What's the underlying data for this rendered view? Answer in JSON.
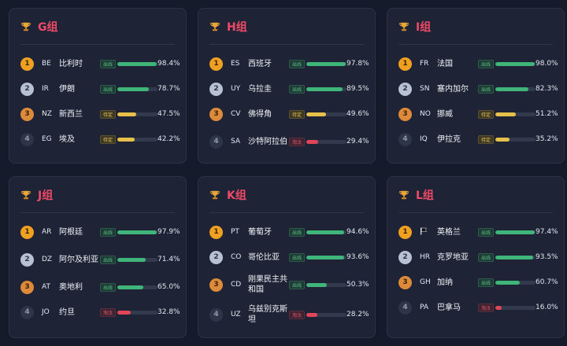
{
  "colors": {
    "qualified": "#3fb57a",
    "pending": "#e7c04a",
    "eliminated": "#e04658"
  },
  "status_labels": {
    "qualified": "出线",
    "pending": "待定",
    "eliminated": "淘汰"
  },
  "groups": [
    {
      "title": "G组",
      "teams": [
        {
          "rank": "1",
          "code": "BE",
          "name": "比利时",
          "status": "qualified",
          "status_label": "出线",
          "value": 98.4,
          "percent": "98.4%"
        },
        {
          "rank": "2",
          "code": "IR",
          "name": "伊朗",
          "status": "qualified",
          "status_label": "出线",
          "value": 78.7,
          "percent": "78.7%"
        },
        {
          "rank": "3",
          "code": "NZ",
          "name": "新西兰",
          "status": "pending",
          "status_label": "待定",
          "value": 47.5,
          "percent": "47.5%"
        },
        {
          "rank": "4",
          "code": "EG",
          "name": "埃及",
          "status": "pending",
          "status_label": "待定",
          "value": 42.2,
          "percent": "42.2%"
        }
      ]
    },
    {
      "title": "H组",
      "teams": [
        {
          "rank": "1",
          "code": "ES",
          "name": "西班牙",
          "status": "qualified",
          "status_label": "出线",
          "value": 97.8,
          "percent": "97.8%"
        },
        {
          "rank": "2",
          "code": "UY",
          "name": "乌拉圭",
          "status": "qualified",
          "status_label": "出线",
          "value": 89.5,
          "percent": "89.5%"
        },
        {
          "rank": "3",
          "code": "CV",
          "name": "佛得角",
          "status": "pending",
          "status_label": "待定",
          "value": 49.6,
          "percent": "49.6%"
        },
        {
          "rank": "4",
          "code": "SA",
          "name": "沙特阿拉伯",
          "status": "eliminated",
          "status_label": "淘汰",
          "value": 29.4,
          "percent": "29.4%"
        }
      ]
    },
    {
      "title": "I组",
      "teams": [
        {
          "rank": "1",
          "code": "FR",
          "name": "法国",
          "status": "qualified",
          "status_label": "出线",
          "value": 98.0,
          "percent": "98.0%"
        },
        {
          "rank": "2",
          "code": "SN",
          "name": "塞内加尔",
          "status": "qualified",
          "status_label": "出线",
          "value": 82.3,
          "percent": "82.3%"
        },
        {
          "rank": "3",
          "code": "NO",
          "name": "挪威",
          "status": "pending",
          "status_label": "待定",
          "value": 51.2,
          "percent": "51.2%"
        },
        {
          "rank": "4",
          "code": "IQ",
          "name": "伊拉克",
          "status": "pending",
          "status_label": "待定",
          "value": 35.2,
          "percent": "35.2%"
        }
      ]
    },
    {
      "title": "J组",
      "teams": [
        {
          "rank": "1",
          "code": "AR",
          "name": "阿根廷",
          "status": "qualified",
          "status_label": "出线",
          "value": 97.9,
          "percent": "97.9%"
        },
        {
          "rank": "2",
          "code": "DZ",
          "name": "阿尔及利亚",
          "status": "qualified",
          "status_label": "出线",
          "value": 71.4,
          "percent": "71.4%"
        },
        {
          "rank": "3",
          "code": "AT",
          "name": "奥地利",
          "status": "qualified",
          "status_label": "出线",
          "value": 65.0,
          "percent": "65.0%"
        },
        {
          "rank": "4",
          "code": "JO",
          "name": "约旦",
          "status": "eliminated",
          "status_label": "淘汰",
          "value": 32.8,
          "percent": "32.8%"
        }
      ]
    },
    {
      "title": "K组",
      "teams": [
        {
          "rank": "1",
          "code": "PT",
          "name": "葡萄牙",
          "status": "qualified",
          "status_label": "出线",
          "value": 94.6,
          "percent": "94.6%"
        },
        {
          "rank": "2",
          "code": "CO",
          "name": "哥伦比亚",
          "status": "qualified",
          "status_label": "出线",
          "value": 93.6,
          "percent": "93.6%"
        },
        {
          "rank": "3",
          "code": "CD",
          "name": "刚果民主共和国",
          "status": "qualified",
          "status_label": "出线",
          "value": 50.3,
          "percent": "50.3%"
        },
        {
          "rank": "4",
          "code": "UZ",
          "name": "乌兹别克斯坦",
          "status": "eliminated",
          "status_label": "淘汰",
          "value": 28.2,
          "percent": "28.2%"
        }
      ]
    },
    {
      "title": "L组",
      "teams": [
        {
          "rank": "1",
          "code": "",
          "flag_icon": "black-flag-icon",
          "name": "英格兰",
          "status": "qualified",
          "status_label": "出线",
          "value": 97.4,
          "percent": "97.4%"
        },
        {
          "rank": "2",
          "code": "HR",
          "name": "克罗地亚",
          "status": "qualified",
          "status_label": "出线",
          "value": 93.5,
          "percent": "93.5%"
        },
        {
          "rank": "3",
          "code": "GH",
          "name": "加纳",
          "status": "qualified",
          "status_label": "出线",
          "value": 60.7,
          "percent": "60.7%"
        },
        {
          "rank": "4",
          "code": "PA",
          "name": "巴拿马",
          "status": "eliminated",
          "status_label": "淘汰",
          "value": 16.0,
          "percent": "16.0%"
        }
      ]
    }
  ]
}
